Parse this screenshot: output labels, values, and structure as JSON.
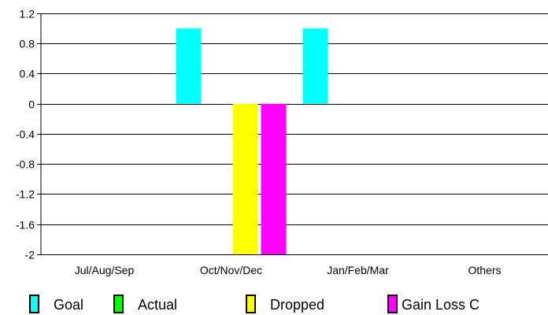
{
  "chart_data": {
    "type": "bar",
    "title": "",
    "xlabel": "",
    "ylabel": "",
    "categories": [
      "Jul/Aug/Sep",
      "Oct/Nov/Dec",
      "Jan/Feb/Mar",
      "Others"
    ],
    "series": [
      {
        "name": "Goal",
        "color": "#00ffff",
        "values": [
          0,
          1,
          1,
          0
        ]
      },
      {
        "name": "Actual",
        "color": "#00ff00",
        "values": [
          0,
          0,
          0,
          0
        ]
      },
      {
        "name": "Dropped",
        "color": "#ffff00",
        "values": [
          0,
          -2,
          0,
          0
        ]
      },
      {
        "name": "Gain Loss C",
        "color": "#ff00ff",
        "values": [
          0,
          -2,
          0,
          0
        ]
      }
    ],
    "ylim": [
      -2,
      1.2
    ],
    "yticks": [
      "1.2",
      "0.8",
      "0.4",
      "0",
      "-0.4",
      "-0.8",
      "-1.2",
      "-1.6",
      "-2"
    ],
    "ytick_values": [
      1.2,
      0.8,
      0.4,
      0,
      -0.4,
      -0.8,
      -1.2,
      -1.6,
      -2
    ],
    "grid": true,
    "legend_position": "bottom"
  }
}
